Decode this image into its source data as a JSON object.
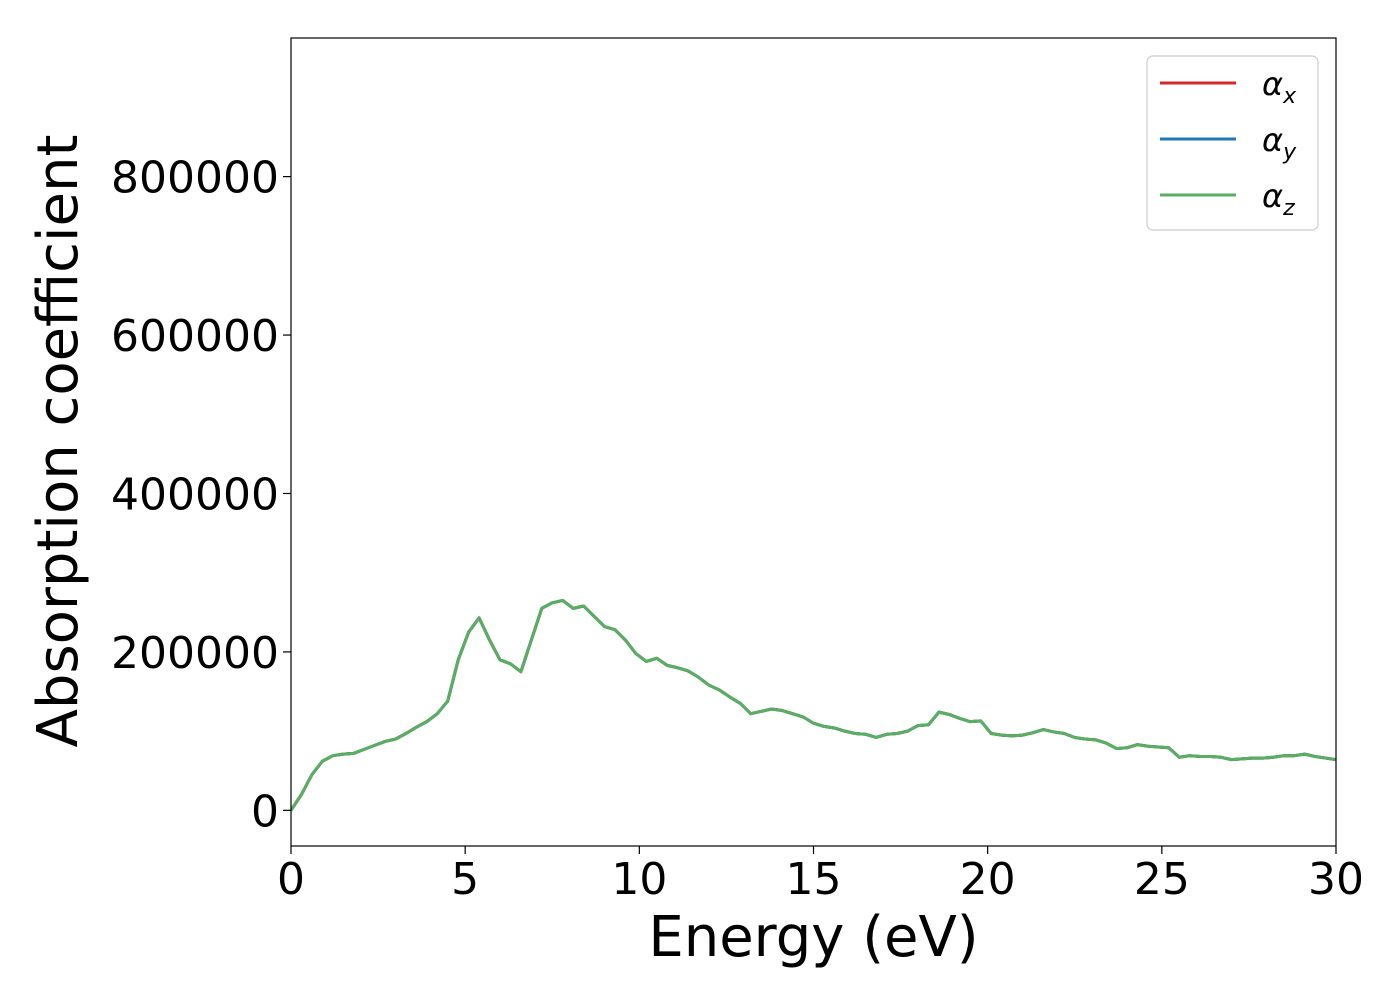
{
  "chart_data": {
    "type": "line",
    "xlabel": "Energy (eV)",
    "ylabel": "Absorption coefficient",
    "xlim": [
      0,
      30
    ],
    "ylim": [
      -45000,
      975000
    ],
    "xticks": [
      0,
      5,
      10,
      15,
      20,
      25,
      30
    ],
    "xtick_labels": [
      "0",
      "5",
      "10",
      "15",
      "20",
      "25",
      "30"
    ],
    "yticks": [
      0,
      200000,
      400000,
      600000,
      800000
    ],
    "ytick_labels": [
      "0",
      "200000",
      "400000",
      "600000",
      "800000"
    ],
    "grid": false,
    "legend_position": "top-right",
    "series": [
      {
        "name": "α_x",
        "base": "α",
        "sub": "x",
        "color": "#d62728",
        "x": [
          0,
          0.3,
          0.6,
          0.9,
          1.2,
          1.5,
          1.8,
          2.1,
          2.4,
          2.7,
          3.0,
          3.3,
          3.6,
          3.9,
          4.2,
          4.5,
          4.8,
          5.1,
          5.4,
          5.7,
          6.0,
          6.3,
          6.6,
          6.9,
          7.2,
          7.5,
          7.8,
          8.1,
          8.4,
          8.7,
          9.0,
          9.3,
          9.6,
          9.9,
          10.2,
          10.5,
          10.8,
          11.1,
          11.4,
          11.7,
          12.0,
          12.3,
          12.6,
          12.9,
          13.2,
          13.5,
          13.8,
          14.1,
          14.4,
          14.7,
          15.0,
          15.3,
          15.6,
          15.9,
          16.2,
          16.5,
          16.8,
          17.1,
          17.4,
          17.7,
          18.0,
          18.3,
          18.6,
          18.9,
          19.2,
          19.5,
          19.8,
          20.1,
          20.4,
          20.7,
          21.0,
          21.3,
          21.6,
          21.9,
          22.2,
          22.5,
          22.8,
          23.1,
          23.4,
          23.7,
          24.0,
          24.3,
          24.6,
          24.9,
          25.2,
          25.5,
          25.8,
          26.1,
          26.4,
          26.7,
          27.0,
          27.3,
          27.6,
          27.9,
          28.2,
          28.5,
          28.8,
          29.1,
          29.4,
          29.7,
          30.0
        ],
        "y": [
          0,
          20000,
          45000,
          62000,
          69000,
          71000,
          72000,
          77000,
          82000,
          87000,
          90000,
          97000,
          105000,
          112000,
          122000,
          138000,
          190000,
          225000,
          243000,
          215000,
          190000,
          185000,
          175000,
          215000,
          255000,
          262000,
          265000,
          255000,
          258000,
          245000,
          232000,
          228000,
          215000,
          198000,
          188000,
          192000,
          183000,
          180000,
          176000,
          168000,
          158000,
          152000,
          143000,
          135000,
          122000,
          125000,
          128000,
          126000,
          122000,
          118000,
          110000,
          106000,
          104000,
          100000,
          97000,
          96000,
          92000,
          96000,
          97000,
          100000,
          107000,
          108000,
          124000,
          121000,
          116000,
          112000,
          113000,
          97000,
          95000,
          94000,
          95000,
          98000,
          102000,
          99000,
          97000,
          92000,
          90000,
          89000,
          85000,
          78000,
          79000,
          83000,
          81000,
          80000,
          79000,
          67000,
          69000,
          68000,
          68000,
          67000,
          64000,
          65000,
          66000,
          66000,
          67000,
          69000,
          69000,
          71000,
          68000,
          66000,
          64000
        ]
      },
      {
        "name": "α_y",
        "base": "α",
        "sub": "y",
        "color": "#1f77b4",
        "x": [
          0,
          0.3,
          0.6,
          0.9,
          1.2,
          1.5,
          1.8,
          2.1,
          2.4,
          2.7,
          3.0,
          3.3,
          3.6,
          3.9,
          4.2,
          4.5,
          4.8,
          5.1,
          5.4,
          5.7,
          6.0,
          6.3,
          6.6,
          6.9,
          7.2,
          7.5,
          7.8,
          8.1,
          8.4,
          8.7,
          9.0,
          9.3,
          9.6,
          9.9,
          10.2,
          10.5,
          10.8,
          11.1,
          11.4,
          11.7,
          12.0,
          12.3,
          12.6,
          12.9,
          13.2,
          13.5,
          13.8,
          14.1,
          14.4,
          14.7,
          15.0,
          15.3,
          15.6,
          15.9,
          16.2,
          16.5,
          16.8,
          17.1,
          17.4,
          17.7,
          18.0,
          18.3,
          18.6,
          18.9,
          19.2,
          19.5,
          19.8,
          20.1,
          20.4,
          20.7,
          21.0,
          21.3,
          21.6,
          21.9,
          22.2,
          22.5,
          22.8,
          23.1,
          23.4,
          23.7,
          24.0,
          24.3,
          24.6,
          24.9,
          25.2,
          25.5,
          25.8,
          26.1,
          26.4,
          26.7,
          27.0,
          27.3,
          27.6,
          27.9,
          28.2,
          28.5,
          28.8,
          29.1,
          29.4,
          29.7,
          30.0
        ],
        "y": [
          0,
          20000,
          45000,
          62000,
          69000,
          71000,
          72000,
          77000,
          82000,
          87000,
          90000,
          97000,
          105000,
          112000,
          122000,
          138000,
          190000,
          225000,
          243000,
          215000,
          190000,
          185000,
          175000,
          215000,
          255000,
          262000,
          265000,
          255000,
          258000,
          245000,
          232000,
          228000,
          215000,
          198000,
          188000,
          192000,
          183000,
          180000,
          176000,
          168000,
          158000,
          152000,
          143000,
          135000,
          122000,
          125000,
          128000,
          126000,
          122000,
          118000,
          110000,
          106000,
          104000,
          100000,
          97000,
          96000,
          92000,
          96000,
          97000,
          100000,
          107000,
          108000,
          124000,
          121000,
          116000,
          112000,
          113000,
          97000,
          95000,
          94000,
          95000,
          98000,
          102000,
          99000,
          97000,
          92000,
          90000,
          89000,
          85000,
          78000,
          79000,
          83000,
          81000,
          80000,
          79000,
          67000,
          69000,
          68000,
          68000,
          67000,
          64000,
          65000,
          66000,
          66000,
          67000,
          69000,
          69000,
          71000,
          68000,
          66000,
          64000
        ]
      },
      {
        "name": "α_z",
        "base": "α",
        "sub": "z",
        "color": "#5aae61",
        "x": [
          0,
          0.3,
          0.6,
          0.9,
          1.2,
          1.5,
          1.8,
          2.1,
          2.4,
          2.7,
          3.0,
          3.3,
          3.6,
          3.9,
          4.2,
          4.5,
          4.8,
          5.1,
          5.4,
          5.7,
          6.0,
          6.3,
          6.6,
          6.9,
          7.2,
          7.5,
          7.8,
          8.1,
          8.4,
          8.7,
          9.0,
          9.3,
          9.6,
          9.9,
          10.2,
          10.5,
          10.8,
          11.1,
          11.4,
          11.7,
          12.0,
          12.3,
          12.6,
          12.9,
          13.2,
          13.5,
          13.8,
          14.1,
          14.4,
          14.7,
          15.0,
          15.3,
          15.6,
          15.9,
          16.2,
          16.5,
          16.8,
          17.1,
          17.4,
          17.7,
          18.0,
          18.3,
          18.6,
          18.9,
          19.2,
          19.5,
          19.8,
          20.1,
          20.4,
          20.7,
          21.0,
          21.3,
          21.6,
          21.9,
          22.2,
          22.5,
          22.8,
          23.1,
          23.4,
          23.7,
          24.0,
          24.3,
          24.6,
          24.9,
          25.2,
          25.5,
          25.8,
          26.1,
          26.4,
          26.7,
          27.0,
          27.3,
          27.6,
          27.9,
          28.2,
          28.5,
          28.8,
          29.1,
          29.4,
          29.7,
          30.0
        ],
        "y": [
          0,
          20000,
          45000,
          62000,
          69000,
          71000,
          72000,
          77000,
          82000,
          87000,
          90000,
          97000,
          105000,
          112000,
          122000,
          138000,
          190000,
          225000,
          243000,
          215000,
          190000,
          185000,
          175000,
          215000,
          255000,
          262000,
          265000,
          255000,
          258000,
          245000,
          232000,
          228000,
          215000,
          198000,
          188000,
          192000,
          183000,
          180000,
          176000,
          168000,
          158000,
          152000,
          143000,
          135000,
          122000,
          125000,
          128000,
          126000,
          122000,
          118000,
          110000,
          106000,
          104000,
          100000,
          97000,
          96000,
          92000,
          96000,
          97000,
          100000,
          107000,
          108000,
          124000,
          121000,
          116000,
          112000,
          113000,
          97000,
          95000,
          94000,
          95000,
          98000,
          102000,
          99000,
          97000,
          92000,
          90000,
          89000,
          85000,
          78000,
          79000,
          83000,
          81000,
          80000,
          79000,
          67000,
          69000,
          68000,
          68000,
          67000,
          64000,
          65000,
          66000,
          66000,
          67000,
          69000,
          69000,
          71000,
          68000,
          66000,
          64000
        ]
      }
    ]
  }
}
